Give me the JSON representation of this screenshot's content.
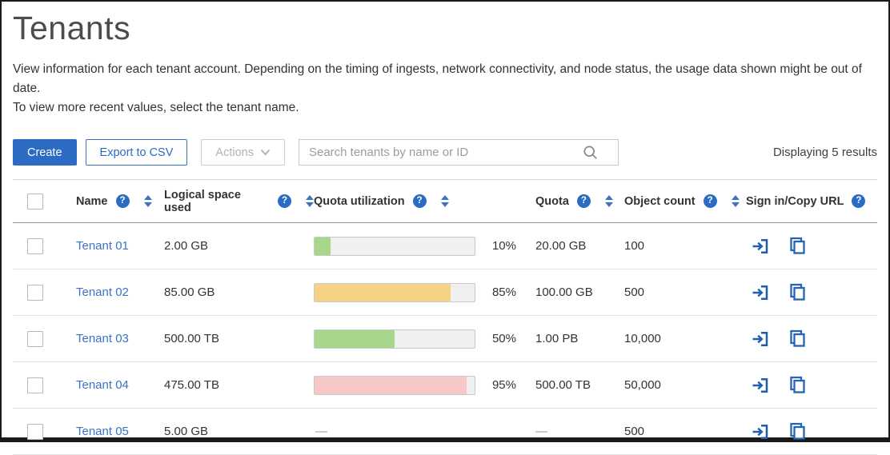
{
  "page": {
    "title": "Tenants",
    "description_line1": "View information for each tenant account. Depending on the timing of ingests, network connectivity, and node status, the usage data shown might be out of date.",
    "description_line2": "To view more recent values, select the tenant name."
  },
  "toolbar": {
    "create_label": "Create",
    "export_label": "Export to CSV",
    "actions_label": "Actions",
    "search_placeholder": "Search tenants by name or ID",
    "results_text": "Displaying 5 results"
  },
  "table": {
    "columns": [
      {
        "label": "Name",
        "help": true,
        "sortable": true
      },
      {
        "label": "Logical space used",
        "help": true,
        "sortable": true
      },
      {
        "label": "Quota utilization",
        "help": true,
        "sortable": true
      },
      {
        "label": "Quota",
        "help": true,
        "sortable": true
      },
      {
        "label": "Object count",
        "help": true,
        "sortable": true
      },
      {
        "label": "Sign in/Copy URL",
        "help": true,
        "sortable": false
      }
    ],
    "rows": [
      {
        "name": "Tenant 01",
        "logical_space": "2.00 GB",
        "quota_pct": 10,
        "quota_pct_label": "10%",
        "bar_color": "#a6d78a",
        "quota": "20.00 GB",
        "objects": "100"
      },
      {
        "name": "Tenant 02",
        "logical_space": "85.00 GB",
        "quota_pct": 85,
        "quota_pct_label": "85%",
        "bar_color": "#f6d287",
        "quota": "100.00 GB",
        "objects": "500"
      },
      {
        "name": "Tenant 03",
        "logical_space": "500.00 TB",
        "quota_pct": 50,
        "quota_pct_label": "50%",
        "bar_color": "#a6d78a",
        "quota": "1.00 PB",
        "objects": "10,000"
      },
      {
        "name": "Tenant 04",
        "logical_space": "475.00 TB",
        "quota_pct": 95,
        "quota_pct_label": "95%",
        "bar_color": "#f6c9c7",
        "quota": "500.00 TB",
        "objects": "50,000"
      },
      {
        "name": "Tenant 05",
        "logical_space": "5.00 GB",
        "quota_pct": null,
        "quota_pct_label": "—",
        "bar_color": null,
        "quota": "—",
        "objects": "500"
      }
    ]
  },
  "colors": {
    "primary_blue": "#2b6bc3",
    "link_blue": "#3b73c4",
    "bar_green": "#a6d78a",
    "bar_amber": "#f6d287",
    "bar_pink": "#f6c9c7",
    "bar_track": "#f0f0f0"
  }
}
